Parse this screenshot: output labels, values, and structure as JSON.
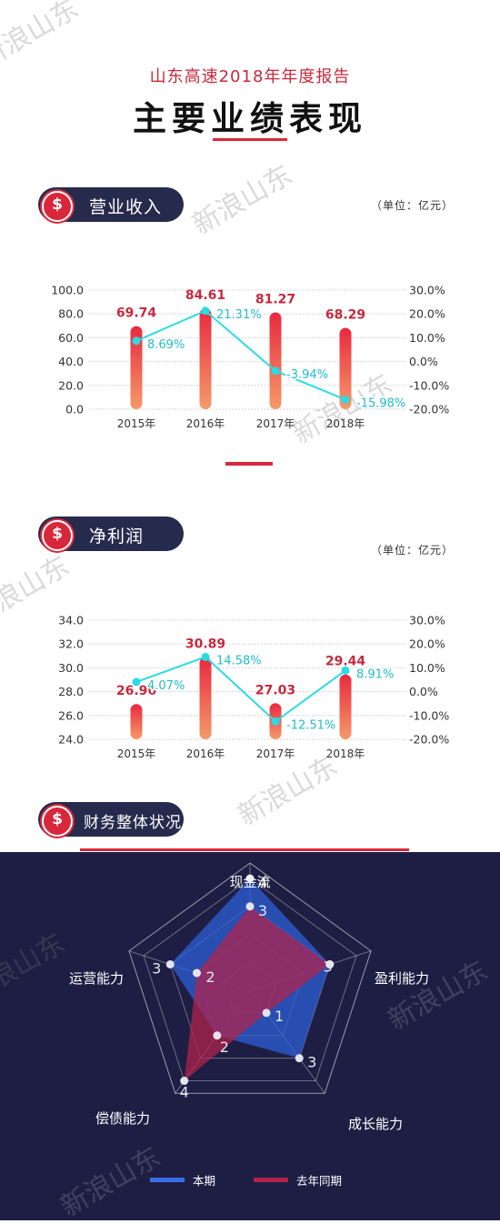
{
  "header": {
    "subtitle": "山东高速2018年年度报告",
    "title": "主要业绩表现"
  },
  "watermark": "新浪山东",
  "sections": {
    "revenue": {
      "label": "营业收入",
      "unit": "（单位：亿元）"
    },
    "profit": {
      "label": "净利润",
      "unit": "（单位：亿元）"
    },
    "finance": {
      "label": "财务整体状况"
    }
  },
  "icons": {
    "section_badge": "dollar-coin-icon"
  },
  "colors": {
    "bar_top": "#e8293f",
    "bar_bottom": "#f59a6a",
    "line": "#2bdbe3",
    "value_label": "#c62a3c",
    "accent": "#d8273a",
    "pill": "#262b4d",
    "panel": "#1e1e44",
    "current": "#2c5fd6",
    "last_year": "#b3224b"
  },
  "chart_data": [
    {
      "type": "bar",
      "categories": [
        "2015年",
        "2016年",
        "2017年",
        "2018年"
      ],
      "series": [
        {
          "axis": "left",
          "values": [
            69.74,
            84.61,
            81.27,
            68.29
          ],
          "labels": [
            "69.74",
            "84.61",
            "81.27",
            "68.29"
          ]
        },
        {
          "axis": "right",
          "kind": "line",
          "values": [
            8.69,
            21.31,
            -3.94,
            -15.98
          ],
          "labels": [
            "8.69%",
            "21.31%",
            "-3.94%",
            "-15.98%"
          ]
        }
      ],
      "ylim": [
        0,
        100
      ],
      "yticks": [
        "100.0",
        "80.0",
        "60.0",
        "40.0",
        "20.0",
        "0.0"
      ],
      "y2lim": [
        -20,
        30
      ],
      "y2ticks": [
        "30.0%",
        "20.0%",
        "10.0%",
        "0.0%",
        "-10.0%",
        "-20.0%"
      ]
    },
    {
      "type": "bar",
      "categories": [
        "2015年",
        "2016年",
        "2017年",
        "2018年"
      ],
      "series": [
        {
          "axis": "left",
          "values": [
            26.96,
            30.89,
            27.03,
            29.44
          ],
          "labels": [
            "26.96",
            "30.89",
            "27.03",
            "29.44"
          ]
        },
        {
          "axis": "right",
          "kind": "line",
          "values": [
            4.07,
            14.58,
            -12.51,
            8.91
          ],
          "labels": [
            "4.07%",
            "14.58%",
            "-12.51%",
            "8.91%"
          ]
        }
      ],
      "ylim": [
        24,
        34
      ],
      "yticks": [
        "34.0",
        "32.0",
        "30.0",
        "28.0",
        "26.0",
        "24.0"
      ],
      "y2lim": [
        -20,
        30
      ],
      "y2ticks": [
        "30.0%",
        "20.0%",
        "10.0%",
        "0.0%",
        "-10.0%",
        "-20.0%"
      ]
    },
    {
      "type": "radar",
      "axes": [
        "现金流",
        "盈利能力",
        "成长能力",
        "偿债能力",
        "运营能力"
      ],
      "max": 4,
      "series": [
        {
          "name": "本期",
          "values": [
            4,
            3,
            3,
            2,
            3
          ]
        },
        {
          "name": "去年同期",
          "values": [
            3,
            3,
            1,
            4,
            2
          ]
        }
      ],
      "value_labels": [
        {
          "axis": 0,
          "text": "4"
        },
        {
          "axis": 0,
          "text": "3"
        },
        {
          "axis": 1,
          "text": "3"
        },
        {
          "axis": 2,
          "text": "3"
        },
        {
          "axis": 2,
          "text": "1"
        },
        {
          "axis": 3,
          "text": "4"
        },
        {
          "axis": 3,
          "text": "2"
        },
        {
          "axis": 4,
          "text": "3"
        },
        {
          "axis": 4,
          "text": "2"
        }
      ],
      "legend": [
        "本期",
        "去年同期"
      ]
    }
  ]
}
